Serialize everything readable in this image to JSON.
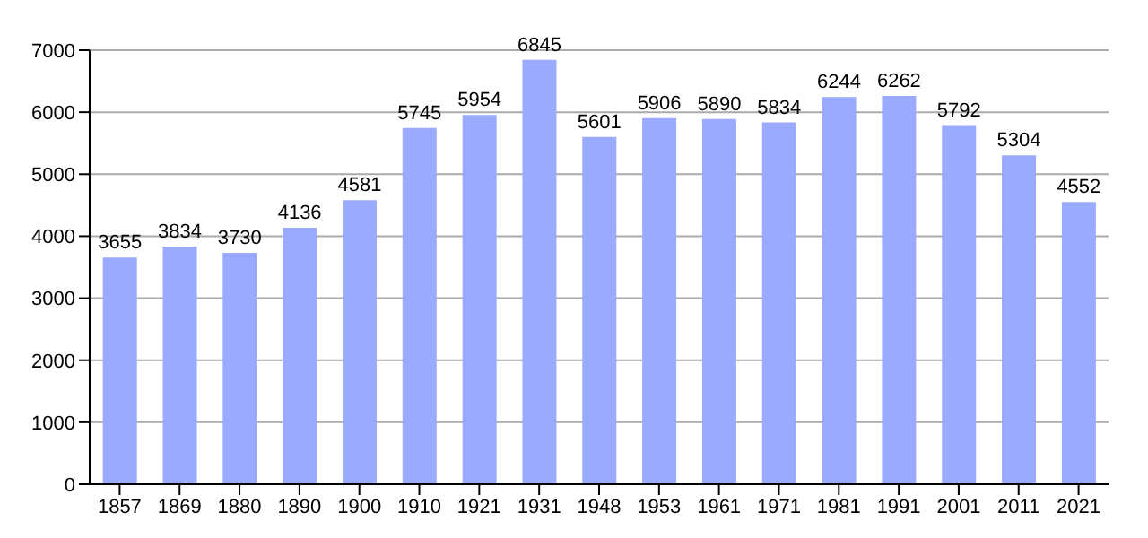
{
  "chart_data": {
    "type": "bar",
    "categories": [
      "1857",
      "1869",
      "1880",
      "1890",
      "1900",
      "1910",
      "1921",
      "1931",
      "1948",
      "1953",
      "1961",
      "1971",
      "1981",
      "1991",
      "2001",
      "2011",
      "2021"
    ],
    "values": [
      3655,
      3834,
      3730,
      4136,
      4581,
      5745,
      5954,
      6845,
      5601,
      5906,
      5890,
      5834,
      6244,
      6262,
      5792,
      5304,
      4552
    ],
    "color": "#99aaff",
    "ylim": [
      0,
      7000
    ],
    "yticks": [
      0,
      1000,
      2000,
      3000,
      4000,
      5000,
      6000,
      7000
    ],
    "grid": "y",
    "data_labels": true
  }
}
